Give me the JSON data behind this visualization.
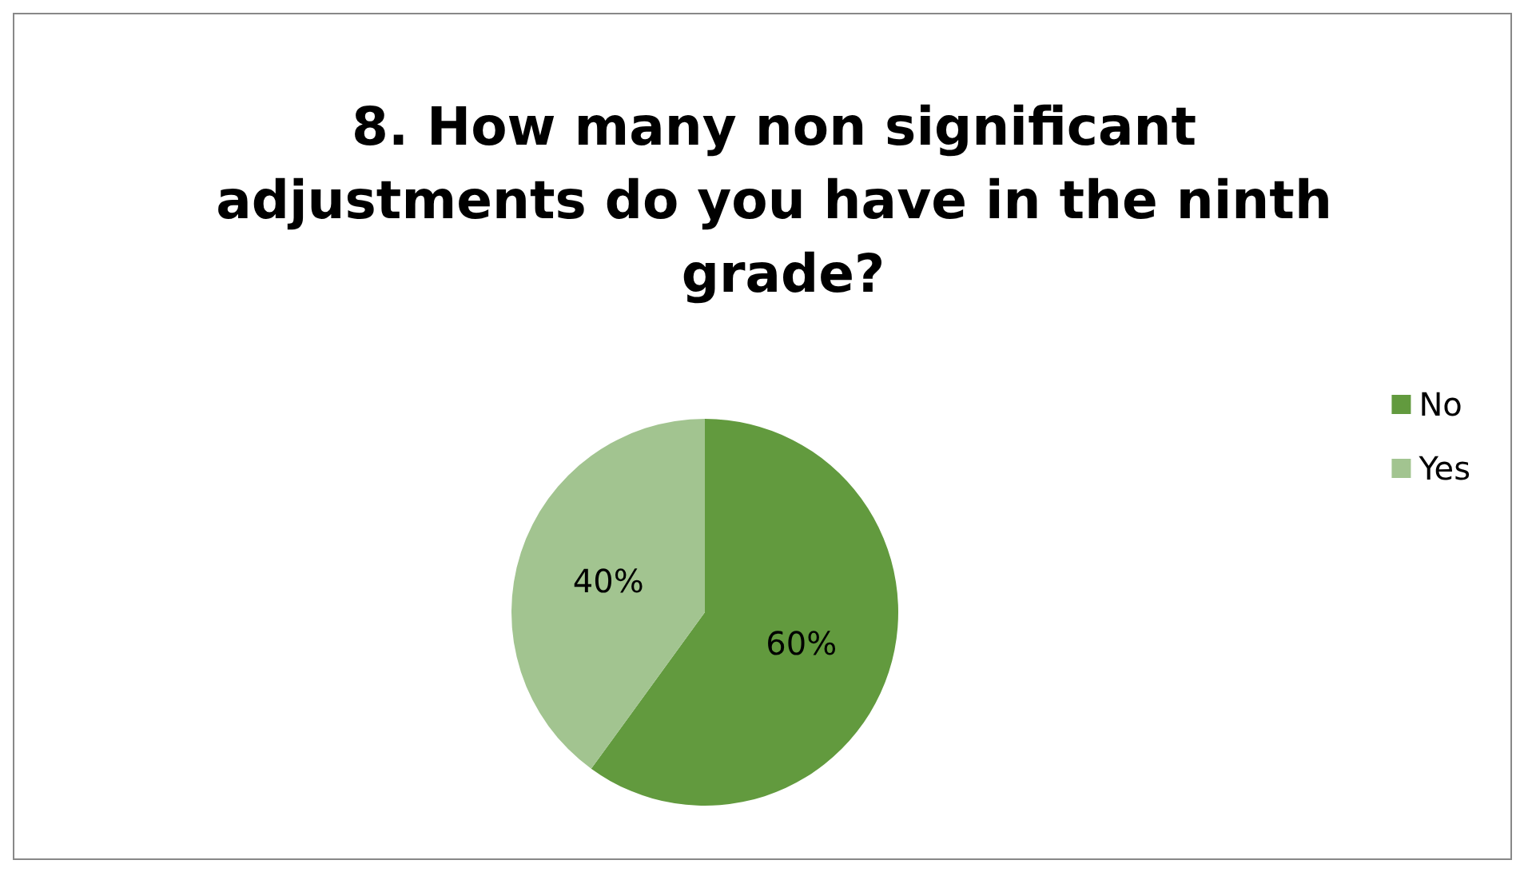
{
  "chart_data": {
    "type": "pie",
    "title": "8. How many non significant adjustments do you have in the ninth grade?",
    "categories": [
      "No",
      "Yes"
    ],
    "values": [
      60,
      40
    ],
    "colors": [
      "#629a3e",
      "#a2c490"
    ],
    "value_labels": [
      "60%",
      "40%"
    ],
    "legend": "right"
  }
}
